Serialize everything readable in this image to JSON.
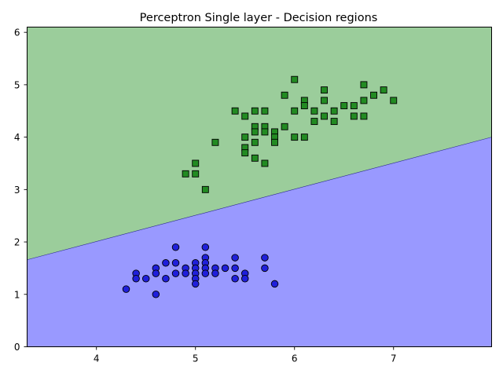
{
  "chart_data": {
    "type": "scatter",
    "title": "Perceptron Single layer - Decision regions",
    "xlabel": "",
    "ylabel": "",
    "xlim": [
      3.3,
      7.99
    ],
    "ylim": [
      0,
      6.1
    ],
    "xticks": [
      "4",
      "5",
      "6",
      "7"
    ],
    "yticks": [
      "0",
      "1",
      "2",
      "3",
      "4",
      "5",
      "6"
    ],
    "grid": false,
    "regions": [
      {
        "color": "#9bcd9b",
        "side": "above"
      },
      {
        "color": "#9999ff",
        "side": "below"
      }
    ],
    "decision_boundary": {
      "points": [
        [
          3.3,
          1.66
        ],
        [
          7.99,
          4.0
        ]
      ]
    },
    "series": [
      {
        "marker": "circle",
        "color": "#1f1fdb",
        "points": [
          [
            4.3,
            1.1
          ],
          [
            4.4,
            1.4
          ],
          [
            4.4,
            1.3
          ],
          [
            4.5,
            1.3
          ],
          [
            4.6,
            1.5
          ],
          [
            4.6,
            1.4
          ],
          [
            4.6,
            1.0
          ],
          [
            4.7,
            1.6
          ],
          [
            4.7,
            1.3
          ],
          [
            4.8,
            1.9
          ],
          [
            4.8,
            1.6
          ],
          [
            4.8,
            1.4
          ],
          [
            4.9,
            1.5
          ],
          [
            4.9,
            1.4
          ],
          [
            5.0,
            1.6
          ],
          [
            5.0,
            1.5
          ],
          [
            5.0,
            1.4
          ],
          [
            5.0,
            1.3
          ],
          [
            5.0,
            1.2
          ],
          [
            5.1,
            1.9
          ],
          [
            5.1,
            1.7
          ],
          [
            5.1,
            1.6
          ],
          [
            5.1,
            1.5
          ],
          [
            5.1,
            1.4
          ],
          [
            5.2,
            1.5
          ],
          [
            5.2,
            1.4
          ],
          [
            5.3,
            1.5
          ],
          [
            5.4,
            1.7
          ],
          [
            5.4,
            1.5
          ],
          [
            5.4,
            1.3
          ],
          [
            5.5,
            1.4
          ],
          [
            5.5,
            1.3
          ],
          [
            5.7,
            1.7
          ],
          [
            5.7,
            1.5
          ],
          [
            5.8,
            1.2
          ]
        ]
      },
      {
        "marker": "square",
        "color": "#228b22",
        "points": [
          [
            4.9,
            3.3
          ],
          [
            5.0,
            3.5
          ],
          [
            5.0,
            3.3
          ],
          [
            5.1,
            3.0
          ],
          [
            5.2,
            3.9
          ],
          [
            5.4,
            4.5
          ],
          [
            5.5,
            4.4
          ],
          [
            5.5,
            4.0
          ],
          [
            5.5,
            3.8
          ],
          [
            5.5,
            3.7
          ],
          [
            5.6,
            4.5
          ],
          [
            5.6,
            4.2
          ],
          [
            5.6,
            4.1
          ],
          [
            5.6,
            3.9
          ],
          [
            5.6,
            3.6
          ],
          [
            5.7,
            4.5
          ],
          [
            5.7,
            4.2
          ],
          [
            5.7,
            4.1
          ],
          [
            5.7,
            3.5
          ],
          [
            5.8,
            4.1
          ],
          [
            5.8,
            4.0
          ],
          [
            5.8,
            3.9
          ],
          [
            5.9,
            4.8
          ],
          [
            5.9,
            4.2
          ],
          [
            6.0,
            5.1
          ],
          [
            6.0,
            4.5
          ],
          [
            6.0,
            4.0
          ],
          [
            6.1,
            4.7
          ],
          [
            6.1,
            4.6
          ],
          [
            6.1,
            4.0
          ],
          [
            6.2,
            4.5
          ],
          [
            6.2,
            4.3
          ],
          [
            6.3,
            4.9
          ],
          [
            6.3,
            4.7
          ],
          [
            6.3,
            4.4
          ],
          [
            6.4,
            4.5
          ],
          [
            6.4,
            4.3
          ],
          [
            6.5,
            4.6
          ],
          [
            6.6,
            4.6
          ],
          [
            6.6,
            4.4
          ],
          [
            6.7,
            5.0
          ],
          [
            6.7,
            4.7
          ],
          [
            6.7,
            4.4
          ],
          [
            6.8,
            4.8
          ],
          [
            6.9,
            4.9
          ],
          [
            7.0,
            4.7
          ]
        ]
      }
    ]
  }
}
